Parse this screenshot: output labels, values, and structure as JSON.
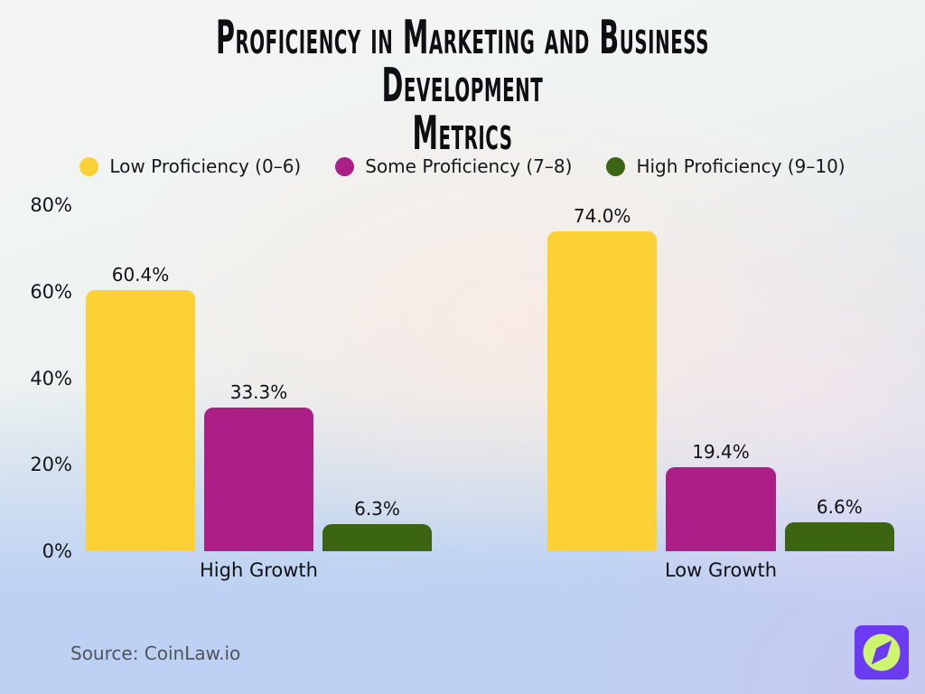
{
  "title": {
    "lines": [
      "Proficiency in Marketing and Business Development",
      "Metrics"
    ]
  },
  "chart_data": {
    "type": "bar",
    "title": "Proficiency in Marketing and Business Development Metrics",
    "categories": [
      "High Growth",
      "Low Growth"
    ],
    "series": [
      {
        "name": "Low Proficiency (0–6)",
        "color": "#FCD135",
        "values": [
          60.4,
          74.0
        ]
      },
      {
        "name": "Some Proficiency (7–8)",
        "color": "#AB1F87",
        "values": [
          33.3,
          19.4
        ]
      },
      {
        "name": "High Proficiency (9–10)",
        "color": "#3B6413",
        "values": [
          6.3,
          6.6
        ]
      }
    ],
    "ylim": [
      0,
      80
    ],
    "yticks": [
      0,
      20,
      40,
      60,
      80
    ],
    "ytick_suffix": "%",
    "value_decimals": 1,
    "value_suffix": "%",
    "grid": false,
    "legend_position": "top"
  },
  "source": {
    "label": "Source: CoinLaw.io"
  },
  "logo": {
    "name": "compass-logo",
    "bg_color": "#6B3BF2",
    "fg_color": "#CDF56F"
  }
}
